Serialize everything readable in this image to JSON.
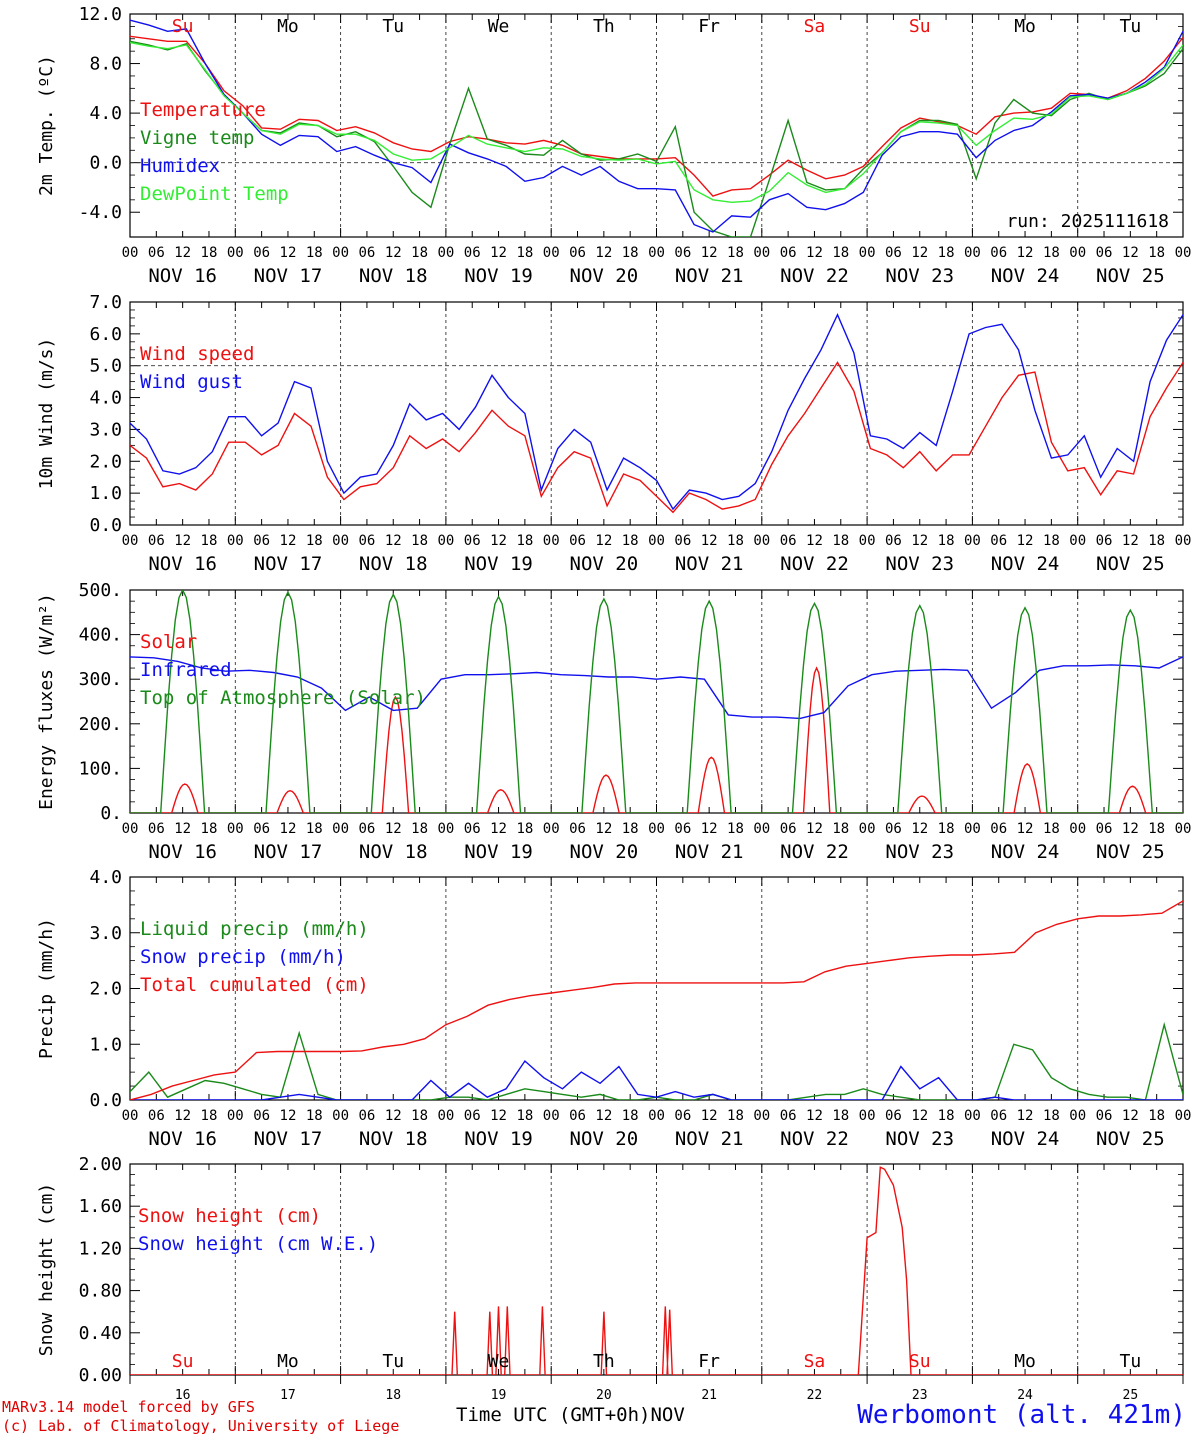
{
  "chart_data": {
    "type": "line",
    "station": "Werbomont (alt. 421m)",
    "credit_line1": "MARv3.14 model forced by GFS",
    "credit_line2": "(c) Lab. of Climatology, University of Liege",
    "xlabel": "Time UTC (GMT+0h)",
    "month": "NOV",
    "run_label": "run: 2025111618",
    "hour_ticks": [
      "00",
      "06",
      "12",
      "18"
    ],
    "date_labels": [
      "NOV 16",
      "NOV 17",
      "NOV 18",
      "NOV 19",
      "NOV 20",
      "NOV 21",
      "NOV 22",
      "NOV 23",
      "NOV 24",
      "NOV 25"
    ],
    "day_numbers": [
      "16",
      "17",
      "18",
      "19",
      "20",
      "21",
      "22",
      "23",
      "24",
      "25"
    ],
    "weekdays": [
      "Su",
      "Mo",
      "Tu",
      "We",
      "Th",
      "Fr",
      "Sa",
      "Su",
      "Mo",
      "Tu"
    ],
    "weekend_color": "#ee1111",
    "x_range_hours": [
      0,
      240
    ],
    "panels": [
      {
        "ylabel": "2m Temp. (ºC)",
        "ylim": [
          -6,
          12
        ],
        "yticks": [
          "12.0",
          "8.0",
          "4.0",
          "0.0",
          "-4.0"
        ],
        "ytick_values": [
          12,
          8,
          4,
          0,
          -4
        ],
        "ref_line": 0,
        "show_weekdays": true,
        "show_run": true,
        "series": [
          {
            "name": "Temperature",
            "color": "#ee1111",
            "values": [
              10.2,
              10,
              9.8,
              9.8,
              8,
              5.8,
              4.6,
              2.8,
              2.7,
              3.5,
              3.4,
              2.6,
              2.9,
              2.4,
              1.6,
              1.1,
              0.9,
              1.7,
              2.1,
              1.9,
              1.6,
              1.5,
              1.8,
              1.4,
              0.7,
              0.5,
              0.3,
              0.3,
              0.3,
              0.4,
              -1,
              -2.7,
              -2.2,
              -2.1,
              -1,
              0.2,
              -0.6,
              -1.3,
              -1,
              -0.3,
              1.3,
              2.8,
              3.6,
              3.3,
              3,
              2.3,
              3.7,
              4,
              4.1,
              4.4,
              5.6,
              5.5,
              5.2,
              5.8,
              6.8,
              8.2,
              10.1
            ]
          },
          {
            "name": "Vigne temp",
            "color": "#1a8a1a",
            "values": [
              9.8,
              9.5,
              9.1,
              9.6,
              7.4,
              5.5,
              4,
              2.6,
              2.4,
              3.2,
              3,
              2.1,
              2.5,
              1.7,
              -0.3,
              -2.4,
              -3.6,
              1.5,
              6,
              1.9,
              1.4,
              0.7,
              0.6,
              1.8,
              0.7,
              0.2,
              0.3,
              0.7,
              0.1,
              2.9,
              -4,
              -5.5,
              -6,
              -6,
              -1.4,
              3.4,
              -1.6,
              -2.2,
              -2.1,
              -0.5,
              0.8,
              2.5,
              3.4,
              3.4,
              3.1,
              -1.3,
              3.2,
              5.1,
              4,
              3.8,
              5.1,
              5.6,
              5.1,
              5.6,
              6.2,
              7.2,
              9.2
            ]
          },
          {
            "name": "Humidex",
            "color": "#1010ee",
            "values": [
              11.5,
              11.1,
              10.6,
              10.8,
              8,
              5.5,
              4,
              2.3,
              1.4,
              2.2,
              2.1,
              0.9,
              1.3,
              0.6,
              0,
              -0.4,
              -1.6,
              1.5,
              0.8,
              0.3,
              -0.3,
              -1.5,
              -1.2,
              -0.3,
              -1,
              -0.3,
              -1.5,
              -2.1,
              -2.1,
              -2.2,
              -5,
              -5.6,
              -4.3,
              -4.4,
              -3,
              -2.5,
              -3.6,
              -3.8,
              -3.3,
              -2.4,
              0.6,
              2.1,
              2.5,
              2.5,
              2.3,
              0.4,
              1.8,
              2.6,
              3,
              4.1,
              5.4,
              5.5,
              5.2,
              5.6,
              6.5,
              7.7,
              10.6
            ]
          },
          {
            "name": "DewPoint Temp",
            "color": "#33ee33",
            "values": [
              9.7,
              9.4,
              9.2,
              9.5,
              7.5,
              5.4,
              4,
              2.6,
              2.3,
              3.1,
              3,
              2.3,
              2.3,
              1.8,
              0.7,
              0.2,
              0.3,
              1.2,
              2.2,
              1.5,
              1.2,
              0.9,
              1.2,
              1.1,
              0.5,
              0.3,
              0.2,
              0.3,
              -0.1,
              0.1,
              -2.2,
              -3,
              -3.2,
              -3.1,
              -2.3,
              -0.8,
              -1.8,
              -2.4,
              -2.1,
              -0.9,
              0.8,
              2.5,
              3.3,
              3.2,
              3,
              1.4,
              2.6,
              3.6,
              3.5,
              3.9,
              5.3,
              5.4,
              5.1,
              5.6,
              6.3,
              7.6,
              9.5
            ]
          }
        ]
      },
      {
        "ylabel": "10m Wind (m/s)",
        "ylim": [
          0,
          7
        ],
        "yticks": [
          "7.0",
          "6.0",
          "5.0",
          "4.0",
          "3.0",
          "2.0",
          "1.0",
          "0.0"
        ],
        "ytick_values": [
          7,
          6,
          5,
          4,
          3,
          2,
          1,
          0
        ],
        "ref_line": 5,
        "series": [
          {
            "name": "Wind speed",
            "color": "#ee1111",
            "values": [
              2.5,
              2.1,
              1.2,
              1.3,
              1.1,
              1.6,
              2.6,
              2.6,
              2.2,
              2.5,
              3.5,
              3.1,
              1.5,
              0.8,
              1.2,
              1.3,
              1.8,
              2.8,
              2.4,
              2.7,
              2.3,
              2.9,
              3.6,
              3.1,
              2.8,
              0.9,
              1.8,
              2.3,
              2.1,
              0.6,
              1.6,
              1.4,
              0.9,
              0.4,
              1,
              0.8,
              0.5,
              0.6,
              0.8,
              1.9,
              2.8,
              3.5,
              4.3,
              5.1,
              4.2,
              2.4,
              2.2,
              1.8,
              2.3,
              1.7,
              2.2,
              2.2,
              3.1,
              4,
              4.7,
              4.8,
              2.6,
              1.7,
              1.8,
              0.95,
              1.7,
              1.6,
              3.4,
              4.3,
              5.1
            ]
          },
          {
            "name": "Wind gust",
            "color": "#1010ee",
            "values": [
              3.2,
              2.7,
              1.7,
              1.6,
              1.8,
              2.3,
              3.4,
              3.4,
              2.8,
              3.2,
              4.5,
              4.3,
              2,
              1,
              1.5,
              1.6,
              2.5,
              3.8,
              3.3,
              3.5,
              3,
              3.7,
              4.7,
              4,
              3.5,
              1.1,
              2.4,
              3,
              2.6,
              1.1,
              2.1,
              1.8,
              1.4,
              0.5,
              1.1,
              1,
              0.8,
              0.9,
              1.3,
              2.3,
              3.6,
              4.6,
              5.5,
              6.6,
              5.4,
              2.8,
              2.7,
              2.4,
              2.9,
              2.5,
              4.2,
              6,
              6.2,
              6.3,
              5.5,
              3.6,
              2.1,
              2.2,
              2.8,
              1.5,
              2.4,
              2,
              4.5,
              5.8,
              6.6
            ]
          }
        ]
      },
      {
        "ylabel": "Energy fluxes (W/m²)",
        "ylim": [
          0,
          500
        ],
        "yticks": [
          "500.",
          "400.",
          "300.",
          "200.",
          "100.",
          "0."
        ],
        "ytick_values": [
          500,
          400,
          300,
          200,
          100,
          0
        ],
        "series": [
          {
            "name": "Solar",
            "color": "#ee1111",
            "values_per_day": [
              65,
              50,
              260,
              52,
              85,
              125,
              325,
              38,
              110,
              60
            ]
          },
          {
            "name": "Infrared",
            "color": "#1010ee",
            "values": [
              350,
              348,
              340,
              325,
              318,
              320,
              315,
              305,
              280,
              230,
              260,
              230,
              235,
              300,
              310,
              310,
              312,
              315,
              310,
              308,
              305,
              305,
              300,
              305,
              300,
              220,
              215,
              215,
              212,
              225,
              285,
              310,
              318,
              320,
              322,
              320,
              235,
              270,
              320,
              330,
              330,
              332,
              330,
              325,
              350
            ]
          },
          {
            "name": "Top of Atmosphere (Solar)",
            "color": "#1a8a1a",
            "values_per_day": [
              500,
              495,
              490,
              485,
              480,
              475,
              470,
              465,
              460,
              455
            ]
          }
        ]
      },
      {
        "ylabel": "Precip (mm/h)",
        "ylim": [
          0,
          4
        ],
        "yticks": [
          "4.0",
          "3.0",
          "2.0",
          "1.0",
          "0.0"
        ],
        "ytick_values": [
          4,
          3,
          2,
          1,
          0
        ],
        "series": [
          {
            "name": "Liquid precip (mm/h)",
            "color": "#1a8a1a",
            "values": [
              0.15,
              0.5,
              0.05,
              0.2,
              0.35,
              0.3,
              0.2,
              0.1,
              0.05,
              1.2,
              0.1,
              0,
              0,
              0,
              0,
              0,
              0,
              0.05,
              0.05,
              0,
              0.1,
              0.2,
              0.15,
              0.1,
              0.05,
              0.1,
              0,
              0,
              0.05,
              0,
              0,
              0.1,
              0,
              0,
              0,
              0,
              0.05,
              0.1,
              0.1,
              0.2,
              0.1,
              0.05,
              0,
              0,
              0,
              0,
              0.05,
              1,
              0.9,
              0.4,
              0.2,
              0.1,
              0.05,
              0.05,
              0,
              1.35,
              0.1
            ]
          },
          {
            "name": "Snow precip (mm/h)",
            "color": "#1010ee",
            "values": [
              0,
              0,
              0,
              0,
              0,
              0,
              0,
              0,
              0.05,
              0.1,
              0.05,
              0,
              0,
              0,
              0,
              0,
              0.35,
              0.05,
              0.3,
              0.05,
              0.2,
              0.7,
              0.4,
              0.2,
              0.5,
              0.3,
              0.6,
              0.1,
              0.05,
              0.15,
              0.05,
              0.1,
              0,
              0,
              0,
              0,
              0,
              0,
              0,
              0,
              0,
              0.6,
              0.2,
              0.4,
              0,
              0,
              0.05,
              0,
              0,
              0,
              0,
              0,
              0,
              0,
              0,
              0,
              0
            ]
          },
          {
            "name": "Total cumulated (cm)",
            "color": "#ee1111",
            "values": [
              0,
              0.1,
              0.25,
              0.35,
              0.45,
              0.5,
              0.85,
              0.87,
              0.87,
              0.87,
              0.87,
              0.88,
              0.95,
              1,
              1.1,
              1.35,
              1.5,
              1.7,
              1.8,
              1.87,
              1.92,
              1.97,
              2.02,
              2.08,
              2.1,
              2.1,
              2.1,
              2.1,
              2.1,
              2.1,
              2.1,
              2.1,
              2.12,
              2.3,
              2.4,
              2.45,
              2.5,
              2.55,
              2.58,
              2.6,
              2.6,
              2.62,
              2.65,
              3.0,
              3.15,
              3.25,
              3.3,
              3.3,
              3.32,
              3.35,
              3.57
            ]
          }
        ]
      },
      {
        "ylabel": "Snow height (cm)",
        "ylim": [
          0,
          2
        ],
        "yticks": [
          "2.00",
          "1.60",
          "1.20",
          "0.80",
          "0.40",
          "0.00"
        ],
        "ytick_values": [
          2,
          1.6,
          1.2,
          0.8,
          0.4,
          0
        ],
        "bottom_labels": true,
        "series": [
          {
            "name": "Snow height (cm)",
            "color": "#ee1111",
            "spikes": [
              [
                74,
                0.6
              ],
              [
                82,
                0.6
              ],
              [
                84,
                0.65
              ],
              [
                86,
                0.65
              ],
              [
                94,
                0.65
              ],
              [
                108,
                0.6
              ],
              [
                122,
                0.65
              ],
              [
                123,
                0.62
              ]
            ],
            "hump": [
              [
                166,
                0
              ],
              [
                168,
                1.3
              ],
              [
                170,
                1.35
              ],
              [
                171,
                1.97
              ],
              [
                172,
                1.95
              ],
              [
                174,
                1.8
              ],
              [
                176,
                1.4
              ],
              [
                177,
                0.9
              ],
              [
                178,
                0
              ]
            ]
          },
          {
            "name": "Snow height (cm W.E.)",
            "color": "#1010ee",
            "values": []
          }
        ]
      }
    ]
  }
}
